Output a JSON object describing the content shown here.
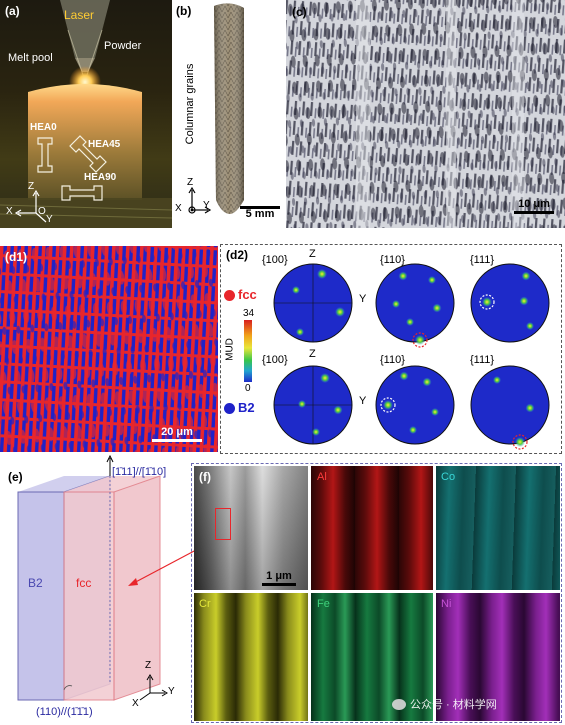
{
  "panel_a": {
    "label": "(a)",
    "laser": "Laser",
    "powder": "Powder",
    "melt_pool": "Melt pool",
    "hea0": "HEA0",
    "hea45": "HEA45",
    "hea90": "HEA90",
    "axis_z": "Z",
    "axis_x": "X",
    "axis_y": "Y",
    "axis_o": "O"
  },
  "panel_b": {
    "label": "(b)",
    "columnar": "Columnar grains",
    "scale": "5 mm",
    "axis_z": "Z",
    "axis_x": "X",
    "axis_y": "Y"
  },
  "panel_c": {
    "label": "(c)",
    "scale": "10 μm"
  },
  "panel_d1": {
    "label": "(d1)",
    "scale": "20 μm"
  },
  "legend": {
    "fcc": "fcc",
    "b2": "B2",
    "fcc_color": "#e8262b",
    "b2_color": "#1f22c9"
  },
  "panel_d2": {
    "label": "(d2)",
    "row1": [
      "{100}",
      "{110}",
      "{111}"
    ],
    "row2": [
      "{100}",
      "{110}",
      "{111}"
    ],
    "axis_z": "Z",
    "axis_y": "Y",
    "colorbar_max": "34",
    "colorbar_min": "0",
    "colorbar_title": "MUD"
  },
  "panel_e": {
    "label": "(e)",
    "top_dir": "[1̄11]//[1̄10]",
    "bottom_dir": "(110)//(1̄1̄1)",
    "b2": "B2",
    "fcc": "fcc",
    "axis_z": "Z",
    "axis_x": "X",
    "axis_y": "Y"
  },
  "panel_f": {
    "label": "(f)",
    "scale": "1 μm",
    "elements": [
      {
        "name": "Al",
        "color": "#ff3b3b"
      },
      {
        "name": "Co",
        "color": "#39d6d6"
      },
      {
        "name": "Cr",
        "color": "#e4e83a"
      },
      {
        "name": "Fe",
        "color": "#3ed07a"
      },
      {
        "name": "Ni",
        "color": "#c552d6"
      }
    ]
  },
  "watermark": "公众号 · 材料学网"
}
